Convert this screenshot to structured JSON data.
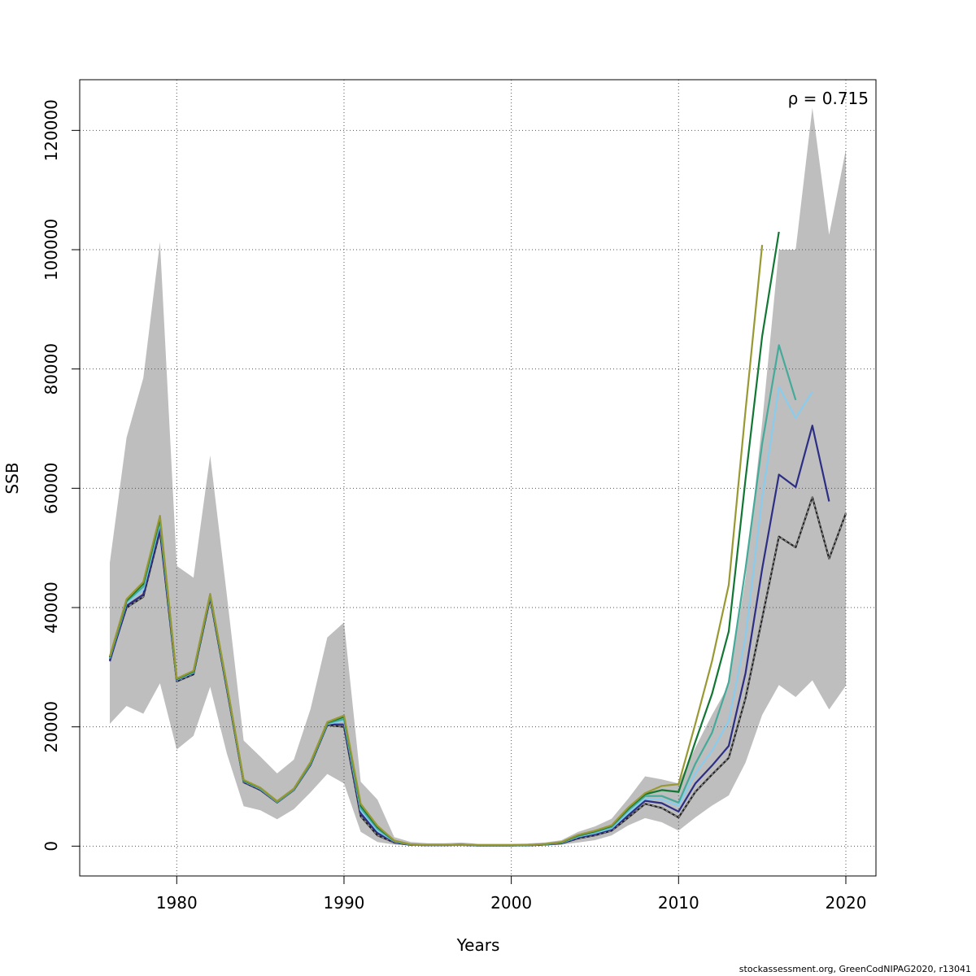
{
  "chart_data": {
    "type": "line",
    "title": "",
    "xlabel": "Years",
    "ylabel": "SSB",
    "xlim": [
      1974.2,
      2021.8
    ],
    "ylim": [
      -5000,
      128500
    ],
    "x_ticks": [
      1980,
      1990,
      2000,
      2010,
      2020
    ],
    "y_ticks": [
      0,
      20000,
      40000,
      60000,
      80000,
      100000,
      120000
    ],
    "grid": true,
    "annotation": "ρ = 0.715",
    "ci_band": {
      "x": [
        1976,
        1977,
        1978,
        1979,
        1980,
        1981,
        1982,
        1983,
        1984,
        1985,
        1986,
        1987,
        1988,
        1989,
        1990,
        1991,
        1992,
        1993,
        1994,
        1995,
        1996,
        1997,
        1998,
        1999,
        2000,
        2001,
        2002,
        2003,
        2004,
        2005,
        2006,
        2007,
        2008,
        2009,
        2010,
        2011,
        2012,
        2013,
        2014,
        2015,
        2016,
        2017,
        2018,
        2019,
        2020
      ],
      "low": [
        20500,
        23500,
        22200,
        27300,
        16200,
        18500,
        26700,
        15500,
        6700,
        6000,
        4500,
        6200,
        9000,
        12100,
        10500,
        2400,
        700,
        250,
        150,
        100,
        100,
        100,
        80,
        80,
        80,
        80,
        150,
        250,
        600,
        1000,
        1800,
        3500,
        4700,
        4000,
        2600,
        4800,
        6800,
        8500,
        14000,
        22000,
        27000,
        25000,
        27800,
        22900,
        26900
      ],
      "high": [
        47500,
        68500,
        78500,
        101300,
        47000,
        45000,
        65500,
        42000,
        17700,
        15000,
        12200,
        14500,
        23000,
        35000,
        37500,
        10800,
        7800,
        1500,
        700,
        500,
        500,
        600,
        400,
        400,
        400,
        450,
        600,
        1000,
        2400,
        3300,
        4600,
        8000,
        11700,
        11200,
        10500,
        16500,
        22000,
        27000,
        45000,
        71000,
        100000,
        100000,
        123800,
        102500,
        116800
      ]
    },
    "series": [
      {
        "name": "",
        "color": "#222222",
        "dashed": true,
        "x": [
          1976,
          1977,
          1978,
          1979,
          1980,
          1981,
          1982,
          1983,
          1984,
          1985,
          1986,
          1987,
          1988,
          1989,
          1990,
          1991,
          1992,
          1993,
          1994,
          1995,
          1996,
          1997,
          1998,
          1999,
          2000,
          2001,
          2002,
          2003,
          2004,
          2005,
          2006,
          2007,
          2008,
          2009,
          2010,
          2011,
          2012,
          2013,
          2014,
          2015,
          2016,
          2017,
          2018,
          2019,
          2020
        ],
        "values": [
          31200,
          40000,
          41800,
          52800,
          27600,
          28800,
          41600,
          26300,
          10700,
          9400,
          7300,
          9400,
          13600,
          20300,
          20000,
          5000,
          1800,
          600,
          200,
          150,
          150,
          200,
          100,
          100,
          100,
          120,
          250,
          450,
          1300,
          1800,
          2600,
          4800,
          7100,
          6400,
          4800,
          9100,
          12000,
          14800,
          24800,
          38200,
          51900,
          50100,
          58500,
          48200,
          55800
        ]
      },
      {
        "name": "",
        "color": "#2c2d84",
        "dashed": false,
        "x": [
          1976,
          1977,
          1978,
          1979,
          1980,
          1981,
          1982,
          1983,
          1984,
          1985,
          1986,
          1987,
          1988,
          1989,
          1990,
          1991,
          1992,
          1993,
          1994,
          1995,
          1996,
          1997,
          1998,
          1999,
          2000,
          2001,
          2002,
          2003,
          2004,
          2005,
          2006,
          2007,
          2008,
          2009,
          2010,
          2011,
          2012,
          2013,
          2014,
          2015,
          2016,
          2017,
          2018,
          2019
        ],
        "values": [
          31000,
          40300,
          42200,
          53200,
          27800,
          29000,
          41800,
          26500,
          10800,
          9500,
          7350,
          9450,
          13700,
          20400,
          20400,
          5500,
          2200,
          700,
          220,
          160,
          160,
          220,
          120,
          120,
          120,
          140,
          280,
          500,
          1450,
          2000,
          2800,
          5200,
          7600,
          7200,
          5800,
          10500,
          13500,
          16800,
          29000,
          46500,
          62300,
          60200,
          70500,
          57800
        ]
      },
      {
        "name": "",
        "color": "#88ccee",
        "dashed": false,
        "x": [
          1976,
          1977,
          1978,
          1979,
          1980,
          1981,
          1982,
          1983,
          1984,
          1985,
          1986,
          1987,
          1988,
          1989,
          1990,
          1991,
          1992,
          1993,
          1994,
          1995,
          1996,
          1997,
          1998,
          1999,
          2000,
          2001,
          2002,
          2003,
          2004,
          2005,
          2006,
          2007,
          2008,
          2009,
          2010,
          2011,
          2012,
          2013,
          2014,
          2015,
          2016,
          2017,
          2018
        ],
        "values": [
          31500,
          40800,
          43000,
          54200,
          27900,
          29100,
          42000,
          26700,
          10900,
          9600,
          7400,
          9500,
          13800,
          20500,
          21000,
          6000,
          2600,
          800,
          240,
          180,
          180,
          240,
          140,
          140,
          140,
          160,
          300,
          560,
          1600,
          2200,
          3000,
          5600,
          8000,
          7800,
          6800,
          12200,
          16000,
          21000,
          35000,
          58500,
          77000,
          71800,
          76200
        ]
      },
      {
        "name": "",
        "color": "#44aa99",
        "dashed": false,
        "x": [
          1976,
          1977,
          1978,
          1979,
          1980,
          1981,
          1982,
          1983,
          1984,
          1985,
          1986,
          1987,
          1988,
          1989,
          1990,
          1991,
          1992,
          1993,
          1994,
          1995,
          1996,
          1997,
          1998,
          1999,
          2000,
          2001,
          2002,
          2003,
          2004,
          2005,
          2006,
          2007,
          2008,
          2009,
          2010,
          2011,
          2012,
          2013,
          2014,
          2015,
          2016,
          2017
        ],
        "values": [
          31600,
          41000,
          43500,
          54600,
          28000,
          29200,
          42100,
          26800,
          11000,
          9700,
          7450,
          9550,
          13900,
          20600,
          21300,
          6400,
          2900,
          850,
          260,
          190,
          190,
          260,
          150,
          150,
          150,
          170,
          320,
          600,
          1700,
          2350,
          3200,
          6000,
          8400,
          8400,
          7300,
          13800,
          19000,
          27500,
          46500,
          67500,
          84000,
          74800
        ]
      },
      {
        "name": "",
        "color": "#117733",
        "dashed": false,
        "x": [
          1976,
          1977,
          1978,
          1979,
          1980,
          1981,
          1982,
          1983,
          1984,
          1985,
          1986,
          1987,
          1988,
          1989,
          1990,
          1991,
          1992,
          1993,
          1994,
          1995,
          1996,
          1997,
          1998,
          1999,
          2000,
          2001,
          2002,
          2003,
          2004,
          2005,
          2006,
          2007,
          2008,
          2009,
          2010,
          2011,
          2012,
          2013,
          2014,
          2015,
          2016
        ],
        "values": [
          31700,
          41200,
          44000,
          55000,
          28000,
          29300,
          42200,
          26900,
          11000,
          9750,
          7500,
          9600,
          14000,
          20700,
          21700,
          6800,
          3200,
          900,
          280,
          200,
          200,
          280,
          160,
          160,
          160,
          180,
          340,
          650,
          1800,
          2500,
          3400,
          6300,
          8700,
          9400,
          9100,
          17500,
          25500,
          36000,
          61500,
          85500,
          103000
        ]
      },
      {
        "name": "",
        "color": "#999933",
        "dashed": false,
        "x": [
          1976,
          1977,
          1978,
          1979,
          1980,
          1981,
          1982,
          1983,
          1984,
          1985,
          1986,
          1987,
          1988,
          1989,
          1990,
          1991,
          1992,
          1993,
          1994,
          1995,
          1996,
          1997,
          1998,
          1999,
          2000,
          2001,
          2002,
          2003,
          2004,
          2005,
          2006,
          2007,
          2008,
          2009,
          2010,
          2011,
          2012,
          2013,
          2014,
          2015
        ],
        "values": [
          31800,
          41400,
          44300,
          55400,
          28100,
          29400,
          42300,
          27000,
          11100,
          9800,
          7550,
          9650,
          14100,
          20800,
          21900,
          7100,
          3400,
          950,
          290,
          210,
          210,
          290,
          170,
          170,
          170,
          190,
          360,
          700,
          1900,
          2600,
          3500,
          6500,
          8900,
          10100,
          10400,
          20500,
          31000,
          43800,
          73000,
          100800
        ]
      }
    ]
  },
  "footer": "stockassessment.org, GreenCodNIPAG2020, r13041"
}
